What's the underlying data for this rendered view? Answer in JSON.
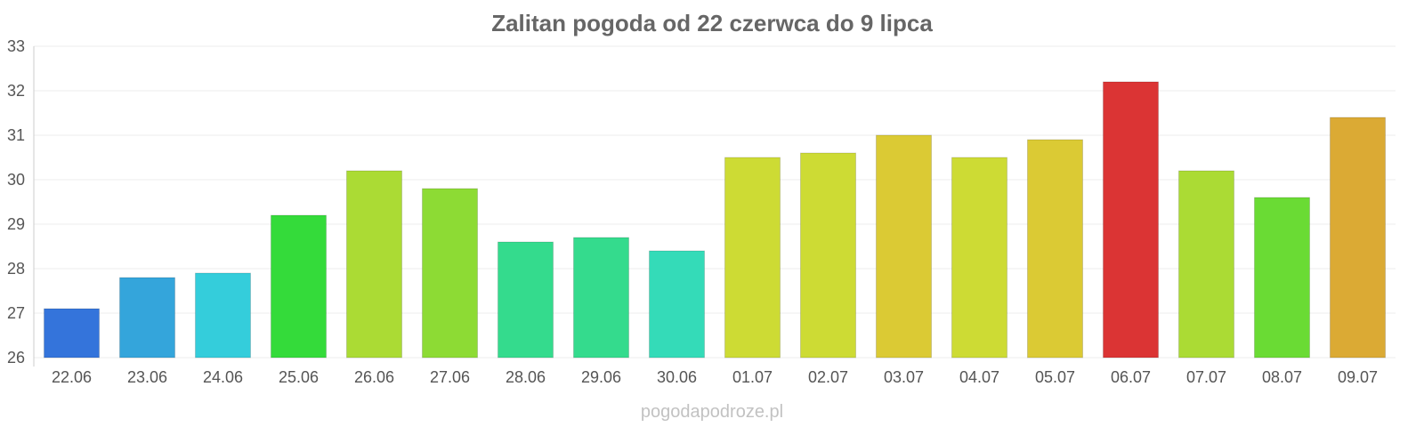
{
  "chart_data": {
    "type": "bar",
    "title": "Zalitan pogoda od 22 czerwca do 9 lipca",
    "xlabel": "",
    "ylabel": "",
    "ylim": [
      26,
      33
    ],
    "y_ticks": [
      "26",
      "27",
      "28",
      "29",
      "30",
      "31",
      "32",
      "33"
    ],
    "grid": true,
    "legend": "none",
    "categories": [
      "22.06",
      "23.06",
      "24.06",
      "25.06",
      "26.06",
      "27.06",
      "28.06",
      "29.06",
      "30.06",
      "01.07",
      "02.07",
      "03.07",
      "04.07",
      "05.07",
      "06.07",
      "07.07",
      "08.07",
      "09.07"
    ],
    "values": [
      27.1,
      27.8,
      27.9,
      29.2,
      30.2,
      29.8,
      28.6,
      28.7,
      28.4,
      30.5,
      30.6,
      31.0,
      30.5,
      30.9,
      32.2,
      30.2,
      29.6,
      31.4
    ],
    "colors": [
      "#3474db",
      "#34a5db",
      "#34cddb",
      "#34db3a",
      "#abdb34",
      "#8ddb34",
      "#34db8d",
      "#34db8d",
      "#34dbb8",
      "#cddb34",
      "#cddb34",
      "#dbca34",
      "#cddb34",
      "#dbca34",
      "#db3434",
      "#abdb34",
      "#6adb34",
      "#dbaa34"
    ]
  },
  "watermark": "pogodapodroze.pl"
}
